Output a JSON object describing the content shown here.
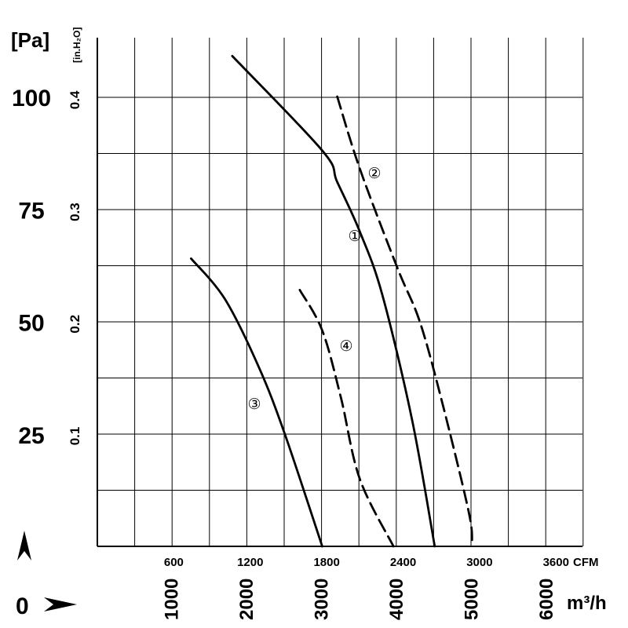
{
  "chart_data": {
    "type": "line",
    "y_units": {
      "pa": "[Pa]",
      "inh2o": "[in.H₂O]"
    },
    "y_pa_ticks": [
      "100",
      "75",
      "50",
      "25"
    ],
    "y_pa_tick_values": [
      100,
      75,
      50,
      25
    ],
    "y_inh2o_ticks": [
      "0.4",
      "0.3",
      "0.2",
      "0.1"
    ],
    "y_inh2o_tick_values": [
      0.4,
      0.3,
      0.2,
      0.1
    ],
    "x_cfm_ticks": [
      "600",
      "1200",
      "1800",
      "2400",
      "3000",
      "3600"
    ],
    "x_cfm_tick_values": [
      600,
      1200,
      1800,
      2400,
      3000,
      3600
    ],
    "x_cfm_unit": "CFM",
    "x_m3h_ticks": [
      "1000",
      "2000",
      "3000",
      "4000",
      "5000",
      "6000"
    ],
    "x_m3h_tick_values": [
      1000,
      2000,
      3000,
      4000,
      5000,
      6000
    ],
    "x_m3h_unit": "m³/h",
    "xlim_m3h": [
      0,
      6500
    ],
    "ylim_pa": [
      0,
      112
    ],
    "origin_label": "0",
    "grid": true,
    "series": [
      {
        "name": "①",
        "style": "solid",
        "x": [
          1800,
          3000,
          3200,
          3500,
          3800,
          4200,
          4500
        ],
        "y": [
          109,
          88,
          81,
          70,
          56,
          28,
          0
        ]
      },
      {
        "name": "②",
        "style": "dashed",
        "x": [
          3200,
          3500,
          4000,
          4300,
          4600,
          4950,
          5000
        ],
        "y": [
          100,
          84,
          62,
          50,
          32,
          8,
          1
        ]
      },
      {
        "name": "③",
        "style": "solid",
        "x": [
          1250,
          1700,
          2150,
          2500,
          3000
        ],
        "y": [
          64,
          55,
          40,
          25,
          0
        ]
      },
      {
        "name": "④",
        "style": "dashed",
        "x": [
          2700,
          3000,
          3250,
          3500,
          3950
        ],
        "y": [
          57,
          48,
          33,
          15,
          0
        ]
      }
    ]
  }
}
